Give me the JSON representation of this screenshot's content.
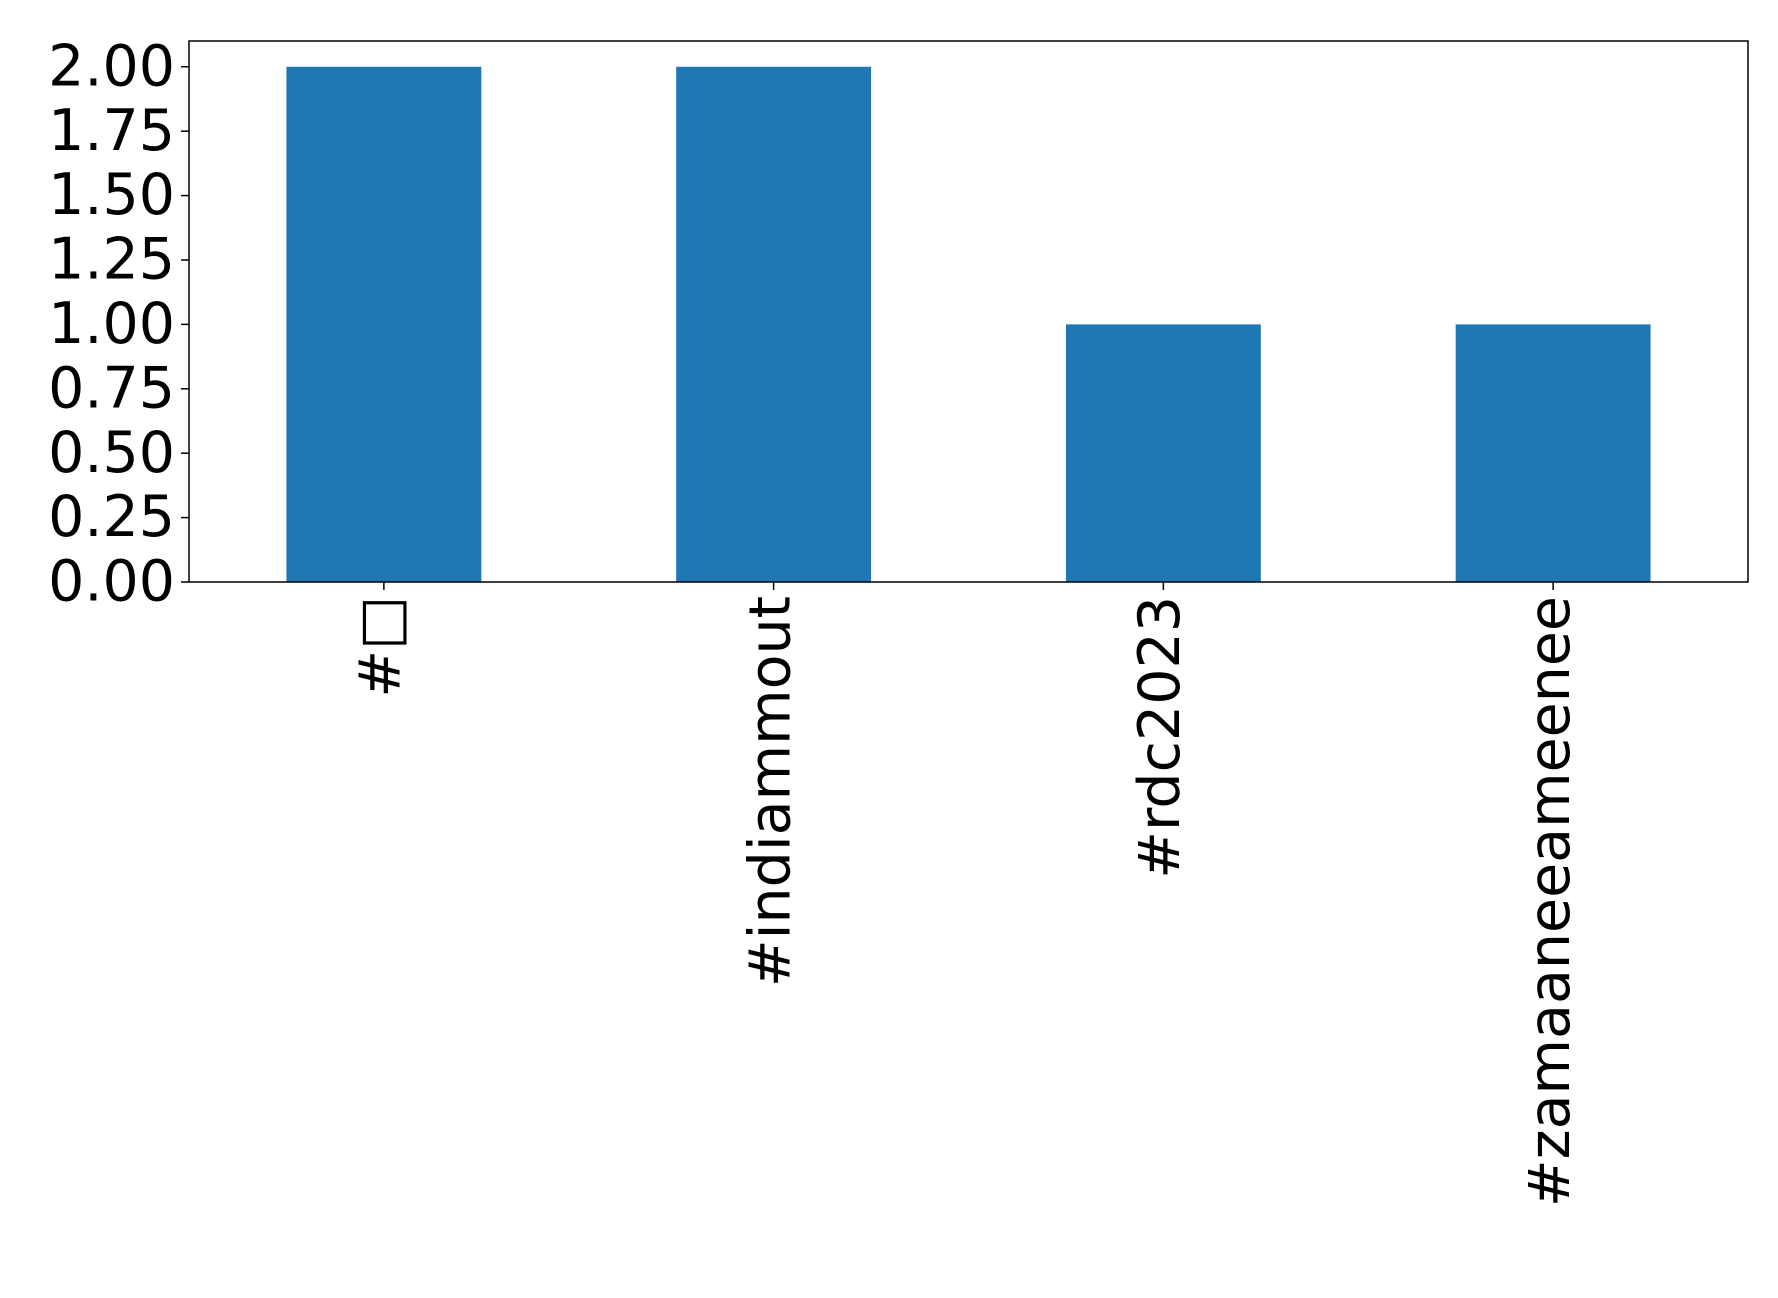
{
  "chart_data": {
    "type": "bar",
    "categories": [
      "#□",
      "#indiammout",
      "#rdc2023",
      "#zamaaneeameenee"
    ],
    "values": [
      2,
      2,
      1,
      1
    ],
    "color": "#1f77b4",
    "ylim": [
      0,
      2.1
    ],
    "yticks": [
      {
        "value": 0,
        "label": "0.00"
      },
      {
        "value": 0.25,
        "label": "0.25"
      },
      {
        "value": 0.5,
        "label": "0.50"
      },
      {
        "value": 0.75,
        "label": "0.75"
      },
      {
        "value": 1,
        "label": "1.00"
      },
      {
        "value": 1.25,
        "label": "1.25"
      },
      {
        "value": 1.5,
        "label": "1.50"
      },
      {
        "value": 1.75,
        "label": "1.75"
      },
      {
        "value": 2,
        "label": "2.00"
      }
    ],
    "grid": false
  }
}
